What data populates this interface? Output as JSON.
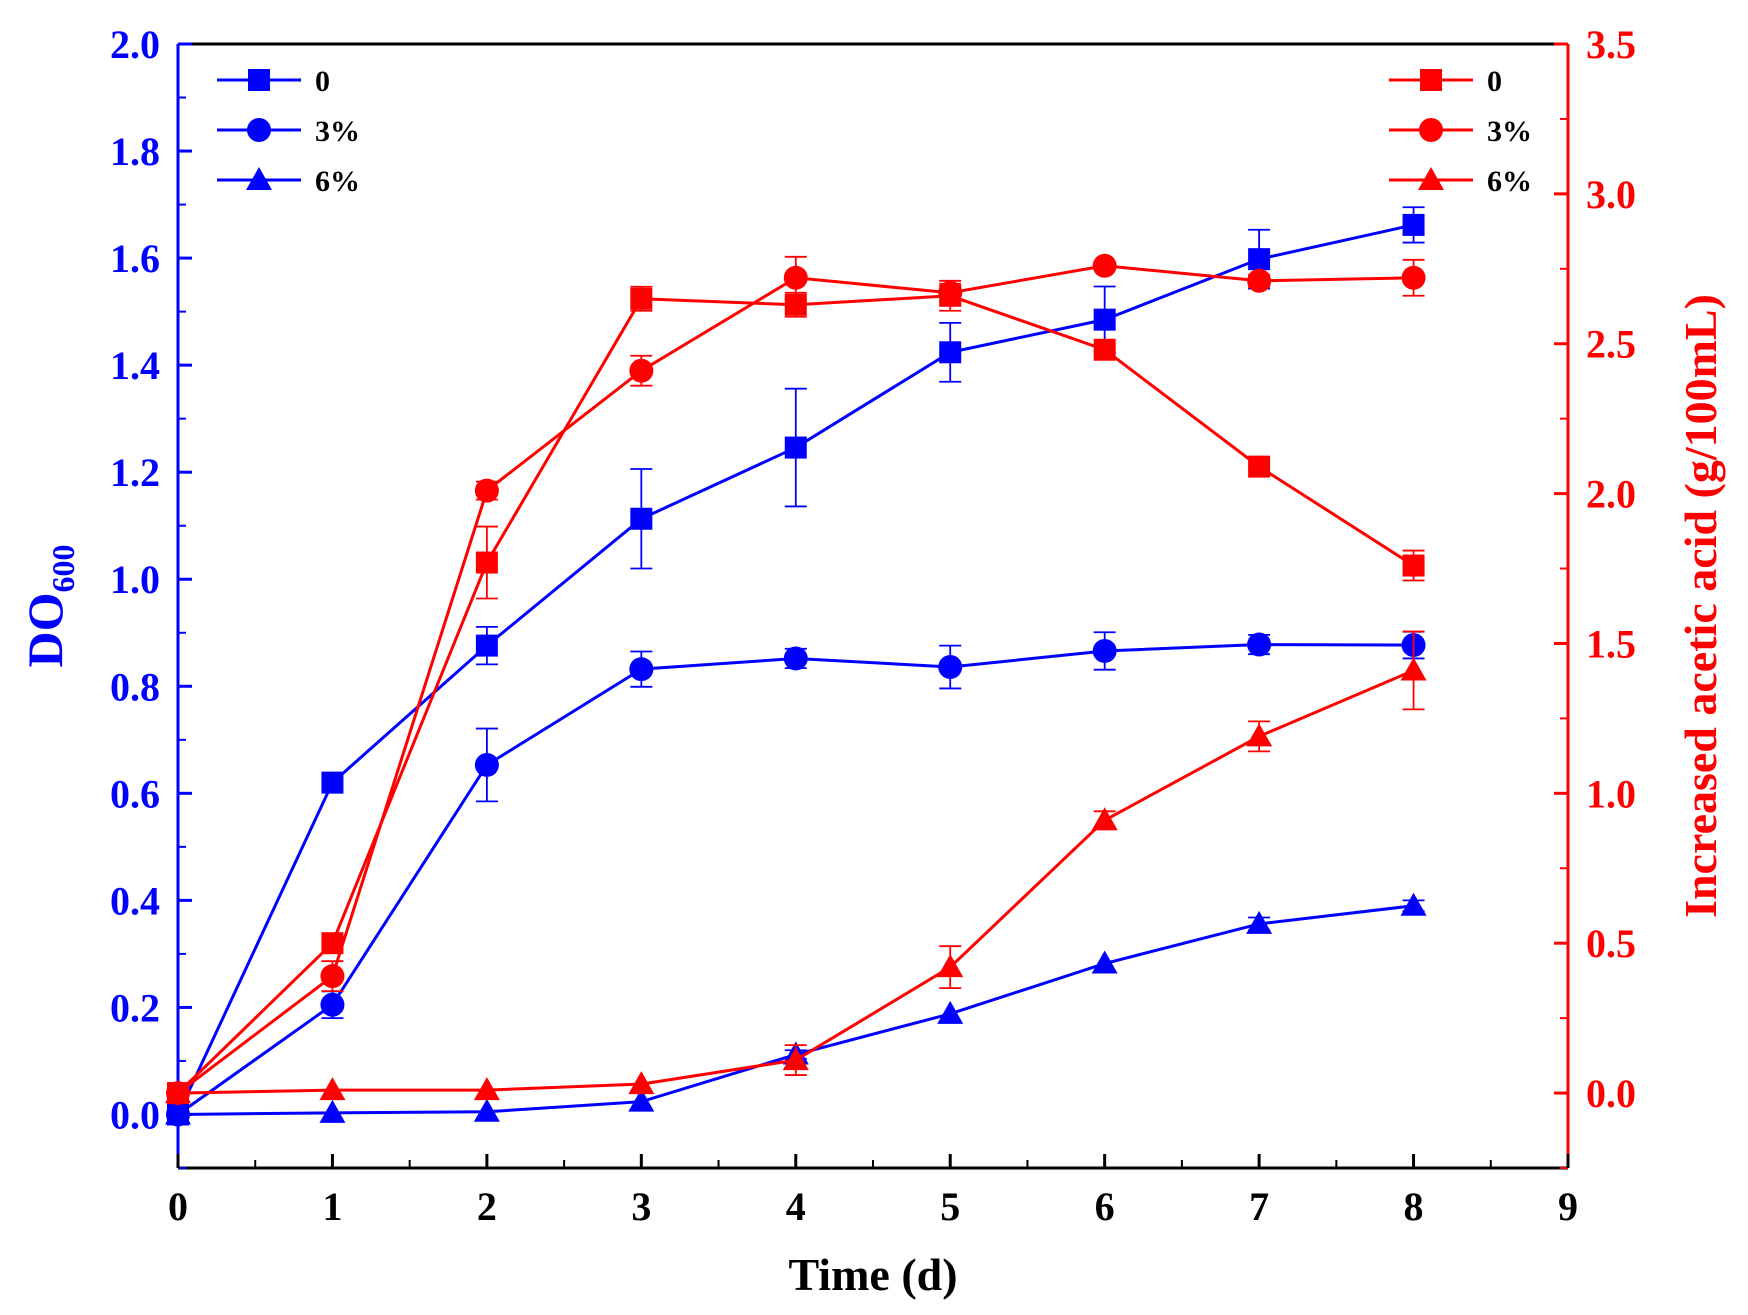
{
  "chart_data": {
    "type": "line",
    "title": "",
    "xlabel": "Time (d)",
    "ylabel_left_main": "DO",
    "ylabel_left_sub": "600",
    "ylabel_right": "Increased acetic acid (g/100mL)",
    "xlim": [
      0,
      9
    ],
    "ylim_left": [
      -0.1,
      2.0
    ],
    "ylim_right": [
      -0.25,
      3.5
    ],
    "x_ticks": [
      0,
      1,
      2,
      3,
      4,
      5,
      6,
      7,
      8,
      9
    ],
    "x_tick_labels": [
      "0",
      "1",
      "2",
      "3",
      "4",
      "5",
      "6",
      "7",
      "8",
      "9"
    ],
    "y_left_ticks": [
      0.0,
      0.2,
      0.4,
      0.6,
      0.8,
      1.0,
      1.2,
      1.4,
      1.6,
      1.8,
      2.0
    ],
    "y_left_tick_labels": [
      "0.0",
      "0.2",
      "0.4",
      "0.6",
      "0.8",
      "1.0",
      "1.2",
      "1.4",
      "1.6",
      "1.8",
      "2.0"
    ],
    "y_right_ticks": [
      0.0,
      0.5,
      1.0,
      1.5,
      2.0,
      2.5,
      3.0,
      3.5
    ],
    "y_right_tick_labels": [
      "0.0",
      "0.5",
      "1.0",
      "1.5",
      "2.0",
      "2.5",
      "3.0",
      "3.5"
    ],
    "legend_left": [
      "0",
      "3%",
      "6%"
    ],
    "legend_right": [
      "0",
      "3%",
      "6%"
    ],
    "colors": {
      "od": "#0000ff",
      "acid": "#ff0000",
      "axis": "#000000"
    },
    "series": [
      {
        "name": "0",
        "axis": "left",
        "color": "#0000ff",
        "marker": "square",
        "x": [
          0,
          1,
          2,
          3,
          4,
          5,
          6,
          7,
          8
        ],
        "values": [
          0.0,
          0.62,
          0.876,
          1.113,
          1.246,
          1.424,
          1.485,
          1.598,
          1.662
        ],
        "errors": [
          0.0,
          0.0,
          0.035,
          0.093,
          0.11,
          0.055,
          0.062,
          0.055,
          0.033
        ]
      },
      {
        "name": "3%",
        "axis": "left",
        "color": "#0000ff",
        "marker": "circle",
        "x": [
          0,
          1,
          2,
          3,
          4,
          5,
          6,
          7,
          8
        ],
        "values": [
          0.0,
          0.205,
          0.653,
          0.832,
          0.852,
          0.836,
          0.866,
          0.878,
          0.877
        ],
        "errors": [
          0.0,
          0.025,
          0.068,
          0.033,
          0.018,
          0.04,
          0.035,
          0.018,
          0.025
        ]
      },
      {
        "name": "6%",
        "axis": "left",
        "color": "#0000ff",
        "marker": "triangle",
        "x": [
          0,
          1,
          2,
          3,
          4,
          5,
          6,
          7,
          8
        ],
        "values": [
          0.0,
          0.003,
          0.005,
          0.024,
          0.112,
          0.188,
          0.282,
          0.356,
          0.39
        ],
        "errors": [
          0.0,
          0.0,
          0.0,
          0.0,
          0.008,
          0.0,
          0.0,
          0.012,
          0.01
        ]
      },
      {
        "name": "0",
        "axis": "right",
        "color": "#ff0000",
        "marker": "square",
        "x": [
          0,
          1,
          2,
          3,
          4,
          5,
          6,
          7,
          8
        ],
        "values": [
          0.0,
          0.5,
          1.77,
          2.65,
          2.63,
          2.66,
          2.48,
          2.09,
          1.76
        ],
        "errors": [
          0.0,
          0.0,
          0.12,
          0.04,
          0.04,
          0.05,
          0.0,
          0.0,
          0.05
        ]
      },
      {
        "name": "3%",
        "axis": "right",
        "color": "#ff0000",
        "marker": "circle",
        "x": [
          0,
          1,
          2,
          3,
          4,
          5,
          6,
          7,
          8
        ],
        "values": [
          0.0,
          0.39,
          2.01,
          2.41,
          2.72,
          2.67,
          2.76,
          2.71,
          2.72
        ],
        "errors": [
          0.0,
          0.05,
          0.03,
          0.05,
          0.07,
          0.03,
          0.0,
          0.02,
          0.06
        ]
      },
      {
        "name": "6%",
        "axis": "right",
        "color": "#ff0000",
        "marker": "triangle",
        "x": [
          0,
          1,
          2,
          3,
          4,
          5,
          6,
          7,
          8
        ],
        "values": [
          0.0,
          0.01,
          0.01,
          0.03,
          0.11,
          0.42,
          0.91,
          1.19,
          1.41
        ],
        "errors": [
          0.0,
          0.0,
          0.0,
          0.0,
          0.05,
          0.07,
          0.03,
          0.05,
          0.13
        ]
      }
    ]
  }
}
